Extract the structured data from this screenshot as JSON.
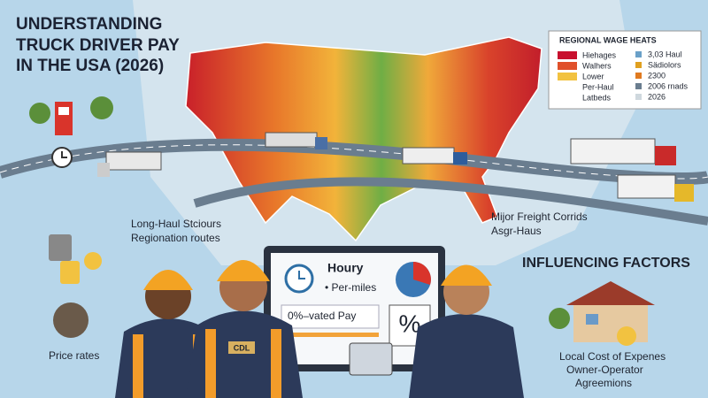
{
  "title": [
    "UNDERSTANDING",
    "TRUCK DRIVER PAY",
    "IN THE USA (2026)"
  ],
  "legend": {
    "title": "REGIONAL WAGE HEATS",
    "left": [
      "Hiehages",
      "Walhers",
      "Lower",
      "Per-Haul",
      "Latbeds"
    ],
    "right": [
      "3,03 Haul",
      "Sädiolors",
      "2300",
      "2006 rnads",
      "2026"
    ]
  },
  "routes": {
    "west": [
      "Long-Haul Stciours",
      "Regionation routes"
    ],
    "east": [
      "Mijor Freight Corrids",
      "Asgr-Haus"
    ]
  },
  "factors_title": "INFLUENCING FACTORS",
  "price_label": "Price rates",
  "screen": {
    "hourly": "Houry",
    "per_mile": "• Per-miles",
    "pay": "0%–vated Pay",
    "percent": "%"
  },
  "badge": "CDL",
  "factors": [
    "Local Cost of Expenes",
    "Owner-Operator",
    "Agreemions"
  ]
}
